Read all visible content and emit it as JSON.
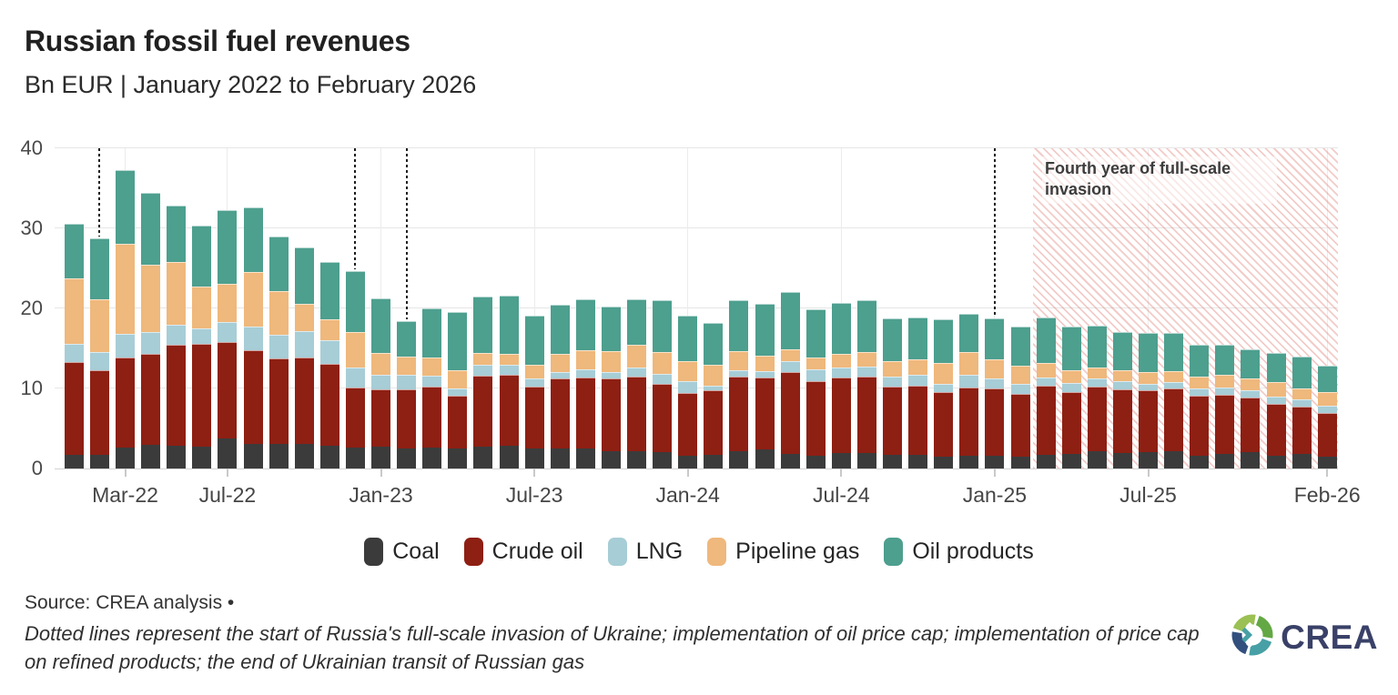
{
  "header": {
    "title": "Russian fossil fuel revenues",
    "subtitle": "Bn EUR | January 2022 to February 2026"
  },
  "chart_data": {
    "type": "bar",
    "stacked": true,
    "unit": "Bn EUR",
    "ylim": [
      0,
      40
    ],
    "yticks": [
      0,
      10,
      20,
      30,
      40
    ],
    "grid": "horizontal-and-vertical-at-ticks",
    "legend_position": "bottom-center",
    "categories": [
      "Jan-22",
      "Feb-22",
      "Mar-22",
      "Apr-22",
      "May-22",
      "Jun-22",
      "Jul-22",
      "Aug-22",
      "Sep-22",
      "Oct-22",
      "Nov-22",
      "Dec-22",
      "Jan-23",
      "Feb-23",
      "Mar-23",
      "Apr-23",
      "May-23",
      "Jun-23",
      "Jul-23",
      "Aug-23",
      "Sep-23",
      "Oct-23",
      "Nov-23",
      "Dec-23",
      "Jan-24",
      "Feb-24",
      "Mar-24",
      "Apr-24",
      "May-24",
      "Jun-24",
      "Jul-24",
      "Aug-24",
      "Sep-24",
      "Oct-24",
      "Nov-24",
      "Dec-24",
      "Jan-25",
      "Feb-25",
      "Mar-25",
      "Apr-25",
      "May-25",
      "Jun-25",
      "Jul-25",
      "Aug-25",
      "Sep-25",
      "Oct-25",
      "Nov-25",
      "Dec-25",
      "Jan-26",
      "Feb-26"
    ],
    "xticks": [
      {
        "label": "Mar-22",
        "month_index": 2
      },
      {
        "label": "Jul-22",
        "month_index": 6
      },
      {
        "label": "Jan-23",
        "month_index": 12
      },
      {
        "label": "Jul-23",
        "month_index": 18
      },
      {
        "label": "Jan-24",
        "month_index": 24
      },
      {
        "label": "Jul-24",
        "month_index": 30
      },
      {
        "label": "Jan-25",
        "month_index": 36
      },
      {
        "label": "Jul-25",
        "month_index": 42
      },
      {
        "label": "Feb-26",
        "month_index": 49
      }
    ],
    "series": [
      {
        "name": "Coal",
        "color": "#3b3b3b",
        "values": [
          1.7,
          1.7,
          2.6,
          3.0,
          2.8,
          2.7,
          3.8,
          3.1,
          3.1,
          3.1,
          2.8,
          2.6,
          2.7,
          2.5,
          2.6,
          2.5,
          2.7,
          2.8,
          2.5,
          2.5,
          2.5,
          2.2,
          2.2,
          2.0,
          1.6,
          1.7,
          2.2,
          2.4,
          1.8,
          1.6,
          1.9,
          1.9,
          1.7,
          1.7,
          1.5,
          1.6,
          1.6,
          1.5,
          1.7,
          1.8,
          2.2,
          1.9,
          2.0,
          2.2,
          1.6,
          1.8,
          2.1,
          1.6,
          1.8,
          1.5
        ]
      },
      {
        "name": "Crude oil",
        "color": "#8e1f13",
        "values": [
          11.6,
          10.6,
          11.3,
          11.3,
          12.7,
          12.9,
          12.0,
          11.7,
          10.7,
          10.8,
          10.3,
          7.5,
          7.2,
          7.4,
          7.6,
          6.6,
          8.9,
          8.9,
          7.7,
          8.7,
          8.9,
          9.0,
          9.3,
          8.6,
          7.8,
          8.1,
          9.3,
          9.0,
          10.2,
          9.3,
          9.5,
          9.6,
          8.5,
          8.6,
          8.0,
          8.5,
          8.4,
          7.8,
          8.7,
          7.8,
          8.0,
          8.0,
          7.8,
          7.8,
          7.5,
          7.4,
          6.8,
          6.5,
          5.9,
          5.4
        ]
      },
      {
        "name": "LNG",
        "color": "#a7cdd6",
        "values": [
          2.3,
          2.2,
          2.9,
          2.7,
          2.5,
          1.9,
          2.5,
          2.9,
          2.9,
          3.3,
          2.9,
          2.5,
          1.8,
          1.8,
          1.4,
          0.9,
          1.4,
          1.3,
          1.1,
          0.9,
          1.0,
          0.9,
          1.1,
          1.2,
          1.5,
          0.6,
          0.8,
          0.8,
          1.4,
          1.5,
          1.2,
          1.2,
          1.3,
          1.4,
          1.1,
          1.6,
          1.2,
          1.3,
          1.0,
          1.1,
          1.0,
          1.0,
          0.8,
          0.8,
          0.9,
          0.9,
          0.9,
          0.9,
          0.9,
          1.0
        ]
      },
      {
        "name": "Pipeline gas",
        "color": "#efb87c",
        "values": [
          8.2,
          6.6,
          11.3,
          8.5,
          7.8,
          5.2,
          4.8,
          6.8,
          5.5,
          3.4,
          2.6,
          4.4,
          2.7,
          2.3,
          2.3,
          2.3,
          1.4,
          1.3,
          1.7,
          2.2,
          2.4,
          2.6,
          2.9,
          2.8,
          2.5,
          2.6,
          2.4,
          1.9,
          1.5,
          1.5,
          1.7,
          1.8,
          1.9,
          1.9,
          2.6,
          2.9,
          2.4,
          2.2,
          1.8,
          1.6,
          1.4,
          1.4,
          1.4,
          1.4,
          1.5,
          1.6,
          1.5,
          1.8,
          1.4,
          1.6
        ]
      },
      {
        "name": "Oil products",
        "color": "#4d9f8e",
        "values": [
          6.8,
          7.6,
          9.2,
          8.9,
          7.1,
          7.6,
          9.2,
          8.1,
          6.8,
          7.0,
          7.2,
          7.7,
          6.9,
          4.4,
          6.1,
          7.3,
          7.1,
          7.3,
          6.1,
          6.2,
          6.3,
          5.5,
          5.6,
          6.4,
          5.7,
          5.2,
          6.3,
          6.5,
          7.2,
          6.0,
          6.4,
          6.5,
          5.4,
          5.3,
          5.4,
          4.7,
          5.1,
          4.9,
          5.7,
          5.4,
          5.3,
          4.7,
          4.9,
          4.7,
          4.0,
          3.8,
          3.6,
          3.6,
          4.0,
          3.3
        ]
      }
    ],
    "dotted_event_lines": {
      "month_indices": [
        1,
        11,
        13,
        36
      ]
    },
    "annotation": {
      "label": "Fourth year of full-scale invasion",
      "start_month_index": 37.5
    }
  },
  "footer": {
    "source_line": "Source: CREA analysis •",
    "note_italic": "Dotted lines represent the start of Russia's full-scale invasion of Ukraine; implementation of oil price cap; implementation of price cap on refined products; the end of Ukrainian transit of Russian gas",
    "logo_text": "CREA",
    "logo_color": "#3a4168"
  }
}
